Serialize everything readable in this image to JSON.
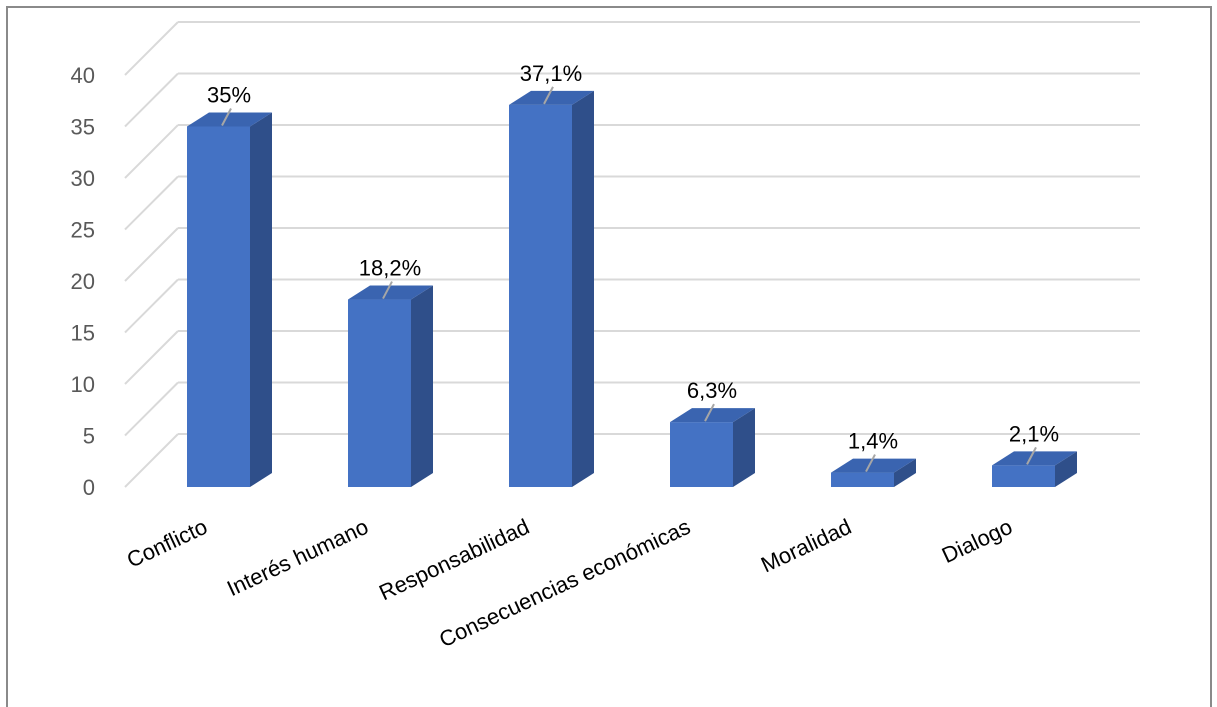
{
  "chart_data": {
    "type": "bar",
    "style": "3d-column",
    "categories": [
      "Conflicto",
      "Interés humano",
      "Responsabilidad",
      "Consecuencias económicas",
      "Moralidad",
      "Dialogo"
    ],
    "values": [
      35,
      18.2,
      37.1,
      6.3,
      1.4,
      2.1
    ],
    "data_labels": [
      "35%",
      "18,2%",
      "37,1%",
      "6,3%",
      "1,4%",
      "2,1%"
    ],
    "y_ticks": [
      "0",
      "5",
      "10",
      "15",
      "20",
      "25",
      "30",
      "35",
      "40"
    ],
    "ylim": [
      0,
      40
    ],
    "grid": true,
    "legend": "none",
    "colors": {
      "bar_front": "#4472C4",
      "bar_side": "#2F4F8A",
      "bar_top": "#3A64B0",
      "grid": "#D9D9D9",
      "axis_text": "#595959"
    }
  }
}
